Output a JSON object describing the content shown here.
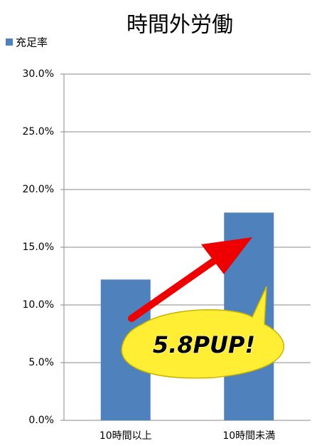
{
  "chart_data": {
    "type": "bar",
    "title": "時間外労働",
    "categories": [
      "10時間以上",
      "10時間未満"
    ],
    "series": [
      {
        "name": "充足率",
        "color": "#4f81bd",
        "values": [
          12.2,
          18.0
        ]
      }
    ],
    "ylim": [
      0,
      30
    ],
    "yticks": [
      {
        "value": 0,
        "label": "0.0%"
      },
      {
        "value": 5,
        "label": "5.0%"
      },
      {
        "value": 10,
        "label": "10.0%"
      },
      {
        "value": 15,
        "label": "15.0%"
      },
      {
        "value": 20,
        "label": "20.0%"
      },
      {
        "value": 25,
        "label": "25.0%"
      },
      {
        "value": 30,
        "label": "30.0%"
      }
    ],
    "grid": true,
    "legend": "top-left",
    "annotation": "5.8PUP!"
  }
}
